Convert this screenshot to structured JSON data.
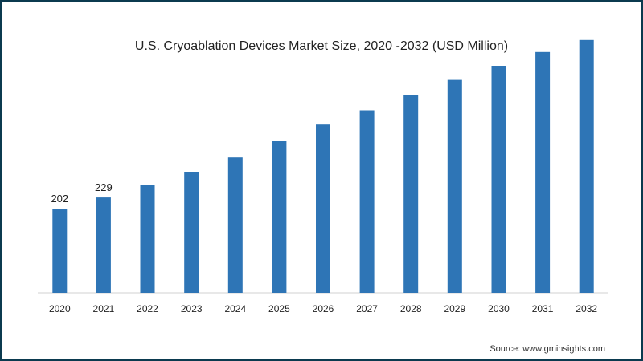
{
  "chart_data": {
    "type": "bar",
    "title": "U.S. Cryoablation Devices Market Size, 2020 -2032 (USD Million)",
    "categories": [
      "2020",
      "2021",
      "2022",
      "2023",
      "2024",
      "2025",
      "2026",
      "2027",
      "2028",
      "2029",
      "2030",
      "2031",
      "2032"
    ],
    "values": [
      202,
      229,
      258,
      290,
      325,
      364,
      404,
      438,
      475,
      511,
      545,
      578,
      607
    ],
    "data_labels": {
      "2020": "202",
      "2021": "229"
    },
    "xlabel": "",
    "ylabel": "",
    "ylim": [
      0,
      620
    ],
    "grid": false,
    "bar_color": "#2e75b6"
  },
  "source_text": "Source: www.gminsights.com"
}
